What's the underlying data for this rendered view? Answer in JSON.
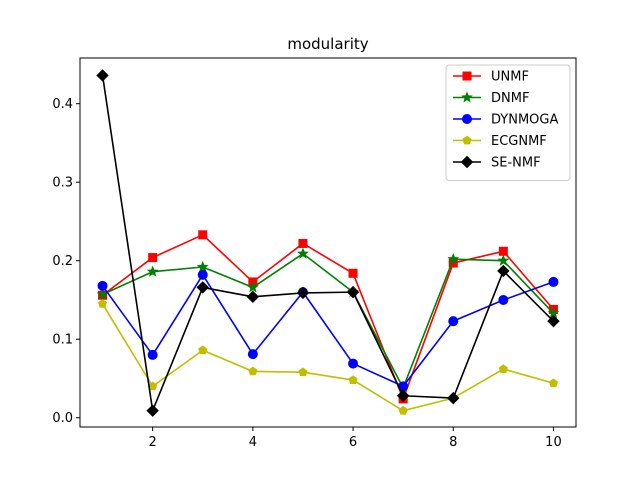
{
  "chart_data": {
    "type": "line",
    "title": "modularity",
    "xlabel": "",
    "ylabel": "",
    "x": [
      1,
      2,
      3,
      4,
      5,
      6,
      7,
      8,
      9,
      10
    ],
    "xlim": [
      0.55,
      10.45
    ],
    "ylim": [
      -0.0118,
      0.4582
    ],
    "xticks": [
      2,
      4,
      6,
      8,
      10
    ],
    "yticks": [
      0.0,
      0.1,
      0.2,
      0.3,
      0.4
    ],
    "xtick_labels": [
      "2",
      "4",
      "6",
      "8",
      "10"
    ],
    "ytick_labels": [
      "0.0",
      "0.1",
      "0.2",
      "0.3",
      "0.4"
    ],
    "grid": false,
    "legend_position": "top-right",
    "series": [
      {
        "name": "UNMF",
        "color": "#ff0000",
        "marker": "square",
        "values": [
          0.156,
          0.204,
          0.233,
          0.173,
          0.222,
          0.184,
          0.024,
          0.197,
          0.212,
          0.138
        ]
      },
      {
        "name": "DNMF",
        "color": "#008000",
        "marker": "star",
        "values": [
          0.157,
          0.186,
          0.192,
          0.166,
          0.209,
          0.16,
          0.038,
          0.202,
          0.2,
          0.133
        ]
      },
      {
        "name": "DYNMOGA",
        "color": "#0000ff",
        "marker": "circle",
        "values": [
          0.168,
          0.08,
          0.182,
          0.081,
          0.16,
          0.069,
          0.04,
          0.123,
          0.15,
          0.173
        ]
      },
      {
        "name": "ECGNMF",
        "color": "#bfbf00",
        "marker": "pentagon",
        "values": [
          0.145,
          0.04,
          0.086,
          0.059,
          0.058,
          0.048,
          0.009,
          0.025,
          0.062,
          0.044
        ]
      },
      {
        "name": "SE-NMF",
        "color": "#000000",
        "marker": "diamond",
        "values": [
          0.436,
          0.009,
          0.166,
          0.154,
          0.159,
          0.16,
          0.028,
          0.025,
          0.187,
          0.123
        ]
      }
    ]
  }
}
